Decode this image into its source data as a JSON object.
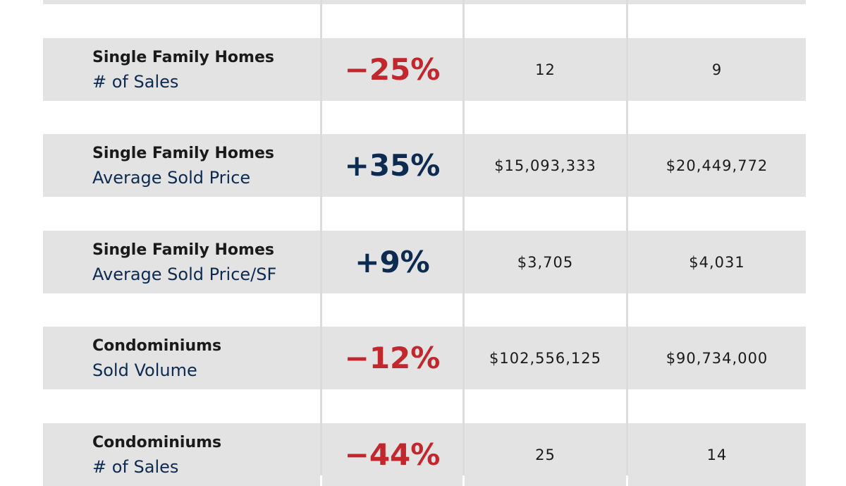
{
  "table": {
    "rows": [
      {
        "category": "Single Family Homes",
        "metric": "# of Sales",
        "change": "−25%",
        "previous": "12",
        "current": "9"
      },
      {
        "category": "Single Family Homes",
        "metric": "Average Sold Price",
        "change": "+35%",
        "previous": "$15,093,333",
        "current": "$20,449,772"
      },
      {
        "category": "Single Family Homes",
        "metric": "Average Sold Price/SF",
        "change": "+9%",
        "previous": "$3,705",
        "current": "$4,031"
      },
      {
        "category": "Condominiums",
        "metric": "Sold Volume",
        "change": "−12%",
        "previous": "$102,556,125",
        "current": "$90,734,000"
      },
      {
        "category": "Condominiums",
        "metric": "# of Sales",
        "change": "−44%",
        "previous": "25",
        "current": "14"
      }
    ]
  }
}
